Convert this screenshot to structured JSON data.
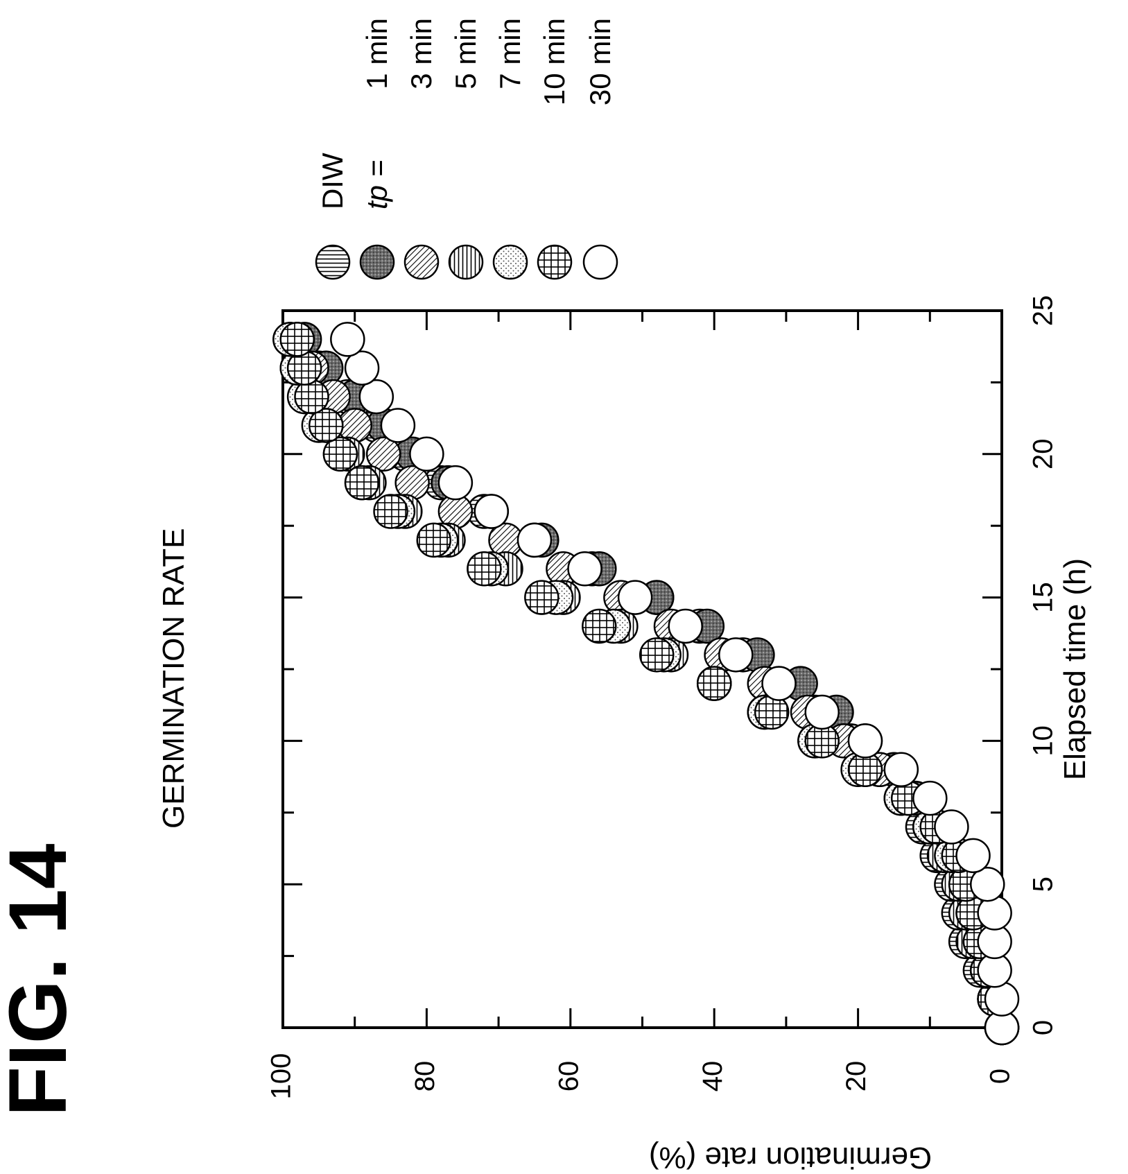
{
  "figure": {
    "label": "FIG. 14",
    "heading": "GERMINATION RATE"
  },
  "legend": {
    "items": [
      {
        "label": "DIW",
        "pattern": "hlines"
      },
      {
        "label": "tp = 1 min",
        "pattern": "dark-stipple"
      },
      {
        "label": "3 min",
        "pattern": "diagonal"
      },
      {
        "label": "5 min",
        "pattern": "vlines"
      },
      {
        "label": "7 min",
        "pattern": "dots"
      },
      {
        "label": "10 min",
        "pattern": "grid"
      },
      {
        "label": "30 min",
        "pattern": "white"
      }
    ]
  },
  "chart_data": {
    "type": "scatter",
    "title": "GERMINATION RATE",
    "xlabel": "Elapsed time (h)",
    "ylabel": "Germination rate (%)",
    "xlim": [
      0,
      25
    ],
    "ylim": [
      0,
      100
    ],
    "xticks": [
      0,
      5,
      10,
      15,
      20,
      25
    ],
    "yticks": [
      0,
      20,
      40,
      60,
      80,
      100
    ],
    "grid": false,
    "legend_position": "top-right",
    "series": [
      {
        "name": "DIW",
        "pattern": "hlines",
        "x": [
          0,
          1,
          2,
          3,
          4,
          5,
          6,
          7,
          8,
          9,
          10,
          11,
          12,
          13,
          14,
          15,
          16,
          17,
          18,
          19,
          20,
          21,
          22,
          23,
          24
        ],
        "y": [
          0,
          1,
          3,
          5,
          6,
          7,
          9,
          11,
          14,
          17,
          21,
          26,
          31,
          36,
          42,
          48,
          57,
          65,
          72,
          78,
          83,
          87,
          91,
          95,
          98
        ]
      },
      {
        "name": "1 min",
        "pattern": "dark-stipple",
        "x": [
          0,
          1,
          2,
          3,
          4,
          5,
          6,
          7,
          8,
          9,
          10,
          11,
          12,
          13,
          14,
          15,
          16,
          17,
          18,
          19,
          20,
          21,
          22,
          23,
          24
        ],
        "y": [
          0,
          1,
          2,
          3,
          4,
          5,
          7,
          9,
          12,
          15,
          19,
          23,
          28,
          34,
          41,
          48,
          56,
          64,
          71,
          77,
          82,
          86,
          90,
          94,
          97
        ]
      },
      {
        "name": "3 min",
        "pattern": "diagonal",
        "x": [
          0,
          1,
          2,
          3,
          4,
          5,
          6,
          7,
          8,
          9,
          10,
          11,
          12,
          13,
          14,
          15,
          16,
          17,
          18,
          19,
          20,
          21,
          22,
          23,
          24
        ],
        "y": [
          0,
          1,
          2,
          3,
          4,
          5,
          7,
          10,
          13,
          17,
          22,
          27,
          33,
          39,
          46,
          53,
          61,
          69,
          76,
          82,
          86,
          90,
          93,
          96,
          98
        ]
      },
      {
        "name": "5 min",
        "pattern": "vlines",
        "x": [
          0,
          1,
          2,
          3,
          4,
          5,
          6,
          7,
          8,
          9,
          10,
          11,
          12,
          13,
          14,
          15,
          16,
          17,
          18,
          19,
          20,
          21,
          22,
          23,
          24
        ],
        "y": [
          0,
          1,
          2,
          4,
          5,
          6,
          8,
          10,
          14,
          19,
          26,
          33,
          40,
          46,
          53,
          61,
          69,
          77,
          83,
          88,
          91,
          94,
          96,
          98,
          99
        ]
      },
      {
        "name": "7 min",
        "pattern": "dots",
        "x": [
          0,
          1,
          2,
          3,
          4,
          5,
          6,
          7,
          8,
          9,
          10,
          11,
          12,
          13,
          14,
          15,
          16,
          17,
          18,
          19,
          20,
          21,
          22,
          23,
          24
        ],
        "y": [
          0,
          1,
          2,
          3,
          4,
          5,
          7,
          10,
          14,
          20,
          26,
          33,
          40,
          47,
          54,
          62,
          71,
          78,
          84,
          89,
          92,
          95,
          97,
          98,
          99
        ]
      },
      {
        "name": "10 min",
        "pattern": "grid",
        "x": [
          0,
          1,
          2,
          3,
          4,
          5,
          6,
          7,
          8,
          9,
          10,
          11,
          12,
          13,
          14,
          15,
          16,
          17,
          18,
          19,
          20,
          21,
          22,
          23,
          24
        ],
        "y": [
          0,
          1,
          2,
          3,
          4,
          5,
          6,
          9,
          13,
          19,
          25,
          32,
          40,
          48,
          56,
          64,
          72,
          79,
          85,
          89,
          92,
          94,
          96,
          97,
          98
        ]
      },
      {
        "name": "30 min",
        "pattern": "white",
        "x": [
          0,
          1,
          2,
          3,
          4,
          5,
          6,
          7,
          8,
          9,
          10,
          11,
          12,
          13,
          14,
          15,
          16,
          17,
          18,
          19,
          20,
          21,
          22,
          23,
          24
        ],
        "y": [
          0,
          0,
          1,
          1,
          1,
          2,
          4,
          7,
          10,
          14,
          19,
          25,
          31,
          37,
          44,
          51,
          58,
          65,
          71,
          76,
          80,
          84,
          87,
          89,
          91
        ]
      }
    ]
  }
}
